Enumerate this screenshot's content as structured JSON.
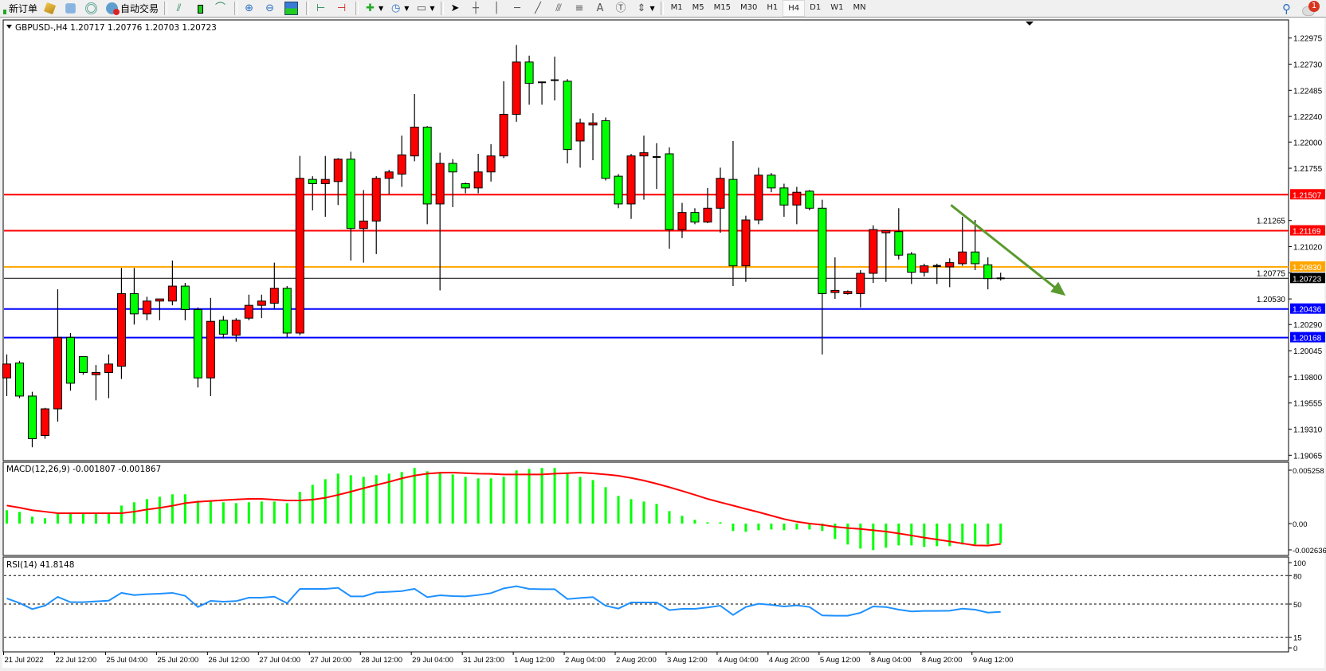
{
  "toolbar": {
    "new_order_label": "新订单",
    "auto_trading_label": "自动交易",
    "icons": [
      "new-order-icon",
      "market-watch-icon",
      "navigator-icon",
      "signals-icon",
      "auto-trading-icon",
      "bar-chart-icon",
      "candlestick-icon",
      "line-chart-icon",
      "zoom-in-icon",
      "zoom-out-icon",
      "tile-windows-icon",
      "chart-shift-icon",
      "autoscroll-icon",
      "indicators-icon",
      "periods-icon",
      "templates-icon",
      "cursor-icon",
      "crosshair-icon",
      "vertical-line-icon",
      "horizontal-line-icon",
      "trendline-icon",
      "equidistant-channel-icon",
      "fibonacci-icon",
      "text-icon",
      "text-label-icon",
      "arrows-icon"
    ],
    "timeframes": [
      "M1",
      "M5",
      "M15",
      "M30",
      "H1",
      "H4",
      "D1",
      "W1",
      "MN"
    ],
    "active_timeframe": "H4",
    "notification_count": "1"
  },
  "colors": {
    "bull": "#ff0000",
    "bear": "#00ff00",
    "macd_hist": "#00ff00",
    "signal": "#ff0000",
    "rsi": "#1e90ff",
    "arrow": "#5b9a2f"
  },
  "chart_data": [
    {
      "type": "candlestick",
      "header": "GBPUSD-,H4  1.20717 1.20776 1.20703 1.20723",
      "ylim": [
        1.19065,
        1.22975
      ],
      "yticks": [
        "1.22975",
        "1.22730",
        "1.22485",
        "1.22240",
        "1.22000",
        "1.21755",
        "1.21265",
        "1.21020",
        "1.20775",
        "1.20530",
        "1.20290",
        "1.20045",
        "1.19800",
        "1.19555",
        "1.19310",
        "1.19065"
      ],
      "time_labels": [
        "21 Jul 2022",
        "22 Jul 12:00",
        "25 Jul 04:00",
        "25 Jul 20:00",
        "26 Jul 12:00",
        "27 Jul 04:00",
        "27 Jul 20:00",
        "28 Jul 12:00",
        "29 Jul 04:00",
        "31 Jul 23:00",
        "1 Aug 12:00",
        "2 Aug 04:00",
        "2 Aug 20:00",
        "3 Aug 12:00",
        "4 Aug 04:00",
        "4 Aug 20:00",
        "5 Aug 12:00",
        "8 Aug 04:00",
        "8 Aug 20:00",
        "9 Aug 12:00"
      ],
      "price_lines": [
        {
          "value": "1.21507",
          "color": "#ff0000"
        },
        {
          "value": "1.21169",
          "color": "#ff0000"
        },
        {
          "value": "1.20830",
          "color": "#ffa500"
        },
        {
          "value": "1.20723",
          "color": "#000000"
        },
        {
          "value": "1.20436",
          "color": "#0000ff"
        },
        {
          "value": "1.20168",
          "color": "#0000ff"
        }
      ],
      "candles_ohlc": [
        [
          1.1979,
          1.2001,
          1.1962,
          1.1992
        ],
        [
          1.1993,
          1.1995,
          1.196,
          1.1962
        ],
        [
          1.1962,
          1.1966,
          1.1914,
          1.1922
        ],
        [
          1.1925,
          1.1951,
          1.1922,
          1.195
        ],
        [
          1.195,
          1.2062,
          1.1938,
          1.2017
        ],
        [
          1.2017,
          1.2021,
          1.1967,
          1.1974
        ],
        [
          1.1999,
          1.1999,
          1.1982,
          1.1984
        ],
        [
          1.1982,
          1.1991,
          1.1958,
          1.1984
        ],
        [
          1.1984,
          1.2001,
          1.196,
          1.1992
        ],
        [
          1.199,
          1.2082,
          1.1978,
          1.2058
        ],
        [
          1.2058,
          1.2082,
          1.2029,
          1.2039
        ],
        [
          1.2039,
          1.2055,
          1.2033,
          1.2051
        ],
        [
          1.2051,
          1.2053,
          1.2033,
          1.2053
        ],
        [
          1.2051,
          1.2089,
          1.2047,
          1.2065
        ],
        [
          1.2065,
          1.2068,
          1.2033,
          1.2043
        ],
        [
          1.2043,
          1.2045,
          1.197,
          1.1979
        ],
        [
          1.1979,
          1.2054,
          1.1962,
          1.2032
        ],
        [
          1.2033,
          1.2037,
          1.2016,
          1.202
        ],
        [
          1.2019,
          1.2035,
          1.2013,
          1.2033
        ],
        [
          1.2035,
          1.2057,
          1.2033,
          1.2047
        ],
        [
          1.2047,
          1.2057,
          1.2035,
          1.2051
        ],
        [
          1.2049,
          1.2087,
          1.2044,
          1.2063
        ],
        [
          1.2063,
          1.2065,
          1.2017,
          1.2021
        ],
        [
          1.2021,
          1.2187,
          1.2019,
          1.2166
        ],
        [
          1.2165,
          1.2168,
          1.2136,
          1.2161
        ],
        [
          1.2161,
          1.2187,
          1.213,
          1.2165
        ],
        [
          1.2163,
          1.2185,
          1.2141,
          1.2184
        ],
        [
          1.2184,
          1.2191,
          1.2089,
          1.2119
        ],
        [
          1.2119,
          1.2155,
          1.2087,
          1.2126
        ],
        [
          1.2126,
          1.2168,
          1.2095,
          1.2166
        ],
        [
          1.2166,
          1.2174,
          1.2151,
          1.2172
        ],
        [
          1.217,
          1.2206,
          1.2158,
          1.2188
        ],
        [
          1.2187,
          1.2245,
          1.2182,
          1.2214
        ],
        [
          1.2214,
          1.2215,
          1.2123,
          1.2142
        ],
        [
          1.2142,
          1.219,
          1.2061,
          1.218
        ],
        [
          1.218,
          1.2184,
          1.2139,
          1.2172
        ],
        [
          1.2161,
          1.2162,
          1.2152,
          1.2157
        ],
        [
          1.2157,
          1.2189,
          1.2152,
          1.2172
        ],
        [
          1.2172,
          1.2198,
          1.2163,
          1.2187
        ],
        [
          1.2187,
          1.2257,
          1.2185,
          1.2226
        ],
        [
          1.2226,
          1.2291,
          1.2219,
          1.2275
        ],
        [
          1.2275,
          1.2281,
          1.2235,
          1.2255
        ],
        [
          1.2256,
          1.2256,
          1.2235,
          1.2256
        ],
        [
          1.2258,
          1.228,
          1.2239,
          1.2258
        ],
        [
          1.2257,
          1.2259,
          1.218,
          1.2193
        ],
        [
          1.2201,
          1.2222,
          1.2176,
          1.2218
        ],
        [
          1.2216,
          1.2227,
          1.2183,
          1.2218
        ],
        [
          1.222,
          1.2223,
          1.2164,
          1.2166
        ],
        [
          1.2168,
          1.217,
          1.2138,
          1.2142
        ],
        [
          1.2142,
          1.2189,
          1.2128,
          1.2187
        ],
        [
          1.2187,
          1.2206,
          1.2146,
          1.219
        ],
        [
          1.2186,
          1.2199,
          1.2156,
          1.2186
        ],
        [
          1.2189,
          1.2195,
          1.21,
          1.2118
        ],
        [
          1.2118,
          1.2143,
          1.211,
          1.2134
        ],
        [
          1.2134,
          1.2138,
          1.2123,
          1.2125
        ],
        [
          1.2125,
          1.2157,
          1.2124,
          1.2138
        ],
        [
          1.2138,
          1.2176,
          1.2115,
          1.2166
        ],
        [
          1.2165,
          1.2201,
          1.2065,
          1.2084
        ],
        [
          1.2084,
          1.2131,
          1.2069,
          1.2127
        ],
        [
          1.2127,
          1.2176,
          1.2123,
          1.2169
        ],
        [
          1.2169,
          1.2171,
          1.2153,
          1.2157
        ],
        [
          1.2157,
          1.2161,
          1.213,
          1.2141
        ],
        [
          1.2141,
          1.2158,
          1.2123,
          1.2153
        ],
        [
          1.2154,
          1.2155,
          1.2136,
          1.2138
        ],
        [
          1.2138,
          1.2146,
          1.2001,
          1.2058
        ],
        [
          1.2059,
          1.2092,
          1.2053,
          1.2061
        ],
        [
          1.2058,
          1.2061,
          1.2057,
          1.206
        ],
        [
          1.2058,
          1.208,
          1.2045,
          1.2077
        ],
        [
          1.2077,
          1.2122,
          1.2068,
          1.2118
        ],
        [
          1.2115,
          1.2117,
          1.2069,
          1.2117
        ],
        [
          1.2116,
          1.2138,
          1.209,
          1.2094
        ],
        [
          1.2095,
          1.2097,
          1.2067,
          1.2078
        ],
        [
          1.2078,
          1.2086,
          1.2074,
          1.2084
        ],
        [
          1.2083,
          1.2086,
          1.2067,
          1.2084
        ],
        [
          1.2083,
          1.2091,
          1.2064,
          1.2087
        ],
        [
          1.2086,
          1.213,
          1.2084,
          1.2097
        ],
        [
          1.2097,
          1.2127,
          1.208,
          1.2086
        ],
        [
          1.2085,
          1.2092,
          1.2062,
          1.2072
        ],
        [
          1.20717,
          1.20776,
          1.20703,
          1.20723
        ]
      ]
    },
    {
      "type": "bar+line",
      "header": "MACD(12,26,9) -0.001807 -0.001867",
      "yticks": [
        "0.005258",
        "0.00",
        "-0.002636"
      ],
      "ylim": [
        -0.002636,
        0.005258
      ],
      "histogram": [
        0.00122,
        0.00107,
        0.00063,
        0.00049,
        0.00092,
        0.00092,
        0.00092,
        0.00092,
        0.00092,
        0.00165,
        0.00195,
        0.00224,
        0.00246,
        0.00268,
        0.00268,
        0.00209,
        0.00202,
        0.00195,
        0.00187,
        0.00195,
        0.00202,
        0.00202,
        0.00187,
        0.0029,
        0.00355,
        0.00406,
        0.00457,
        0.00443,
        0.00428,
        0.00443,
        0.00457,
        0.00472,
        0.00509,
        0.00479,
        0.00472,
        0.0045,
        0.00428,
        0.00414,
        0.00414,
        0.00428,
        0.00487,
        0.00501,
        0.00509,
        0.00509,
        0.00457,
        0.00428,
        0.00399,
        0.00333,
        0.00253,
        0.00224,
        0.00202,
        0.0018,
        0.00114,
        0.00071,
        0.00034,
        0.00012,
        0.00012,
        -0.00068,
        -0.00075,
        -0.00061,
        -0.00054,
        -0.00061,
        -0.00054,
        -0.00054,
        -0.00068,
        -0.00141,
        -0.00192,
        -0.00229,
        -0.00243,
        -0.00221,
        -0.002,
        -0.002,
        -0.00214,
        -0.00207,
        -0.00207,
        -0.00192,
        -0.00192,
        -0.00192,
        -0.001807
      ],
      "signal": [
        0.00165,
        0.00146,
        0.00122,
        0.00109,
        0.00095,
        0.00095,
        0.00095,
        0.00095,
        0.00095,
        0.00095,
        0.00109,
        0.00129,
        0.00144,
        0.00163,
        0.00187,
        0.002,
        0.00207,
        0.00214,
        0.00221,
        0.00226,
        0.00226,
        0.00219,
        0.00212,
        0.00212,
        0.00219,
        0.00236,
        0.00263,
        0.00292,
        0.00324,
        0.00353,
        0.00382,
        0.00414,
        0.0044,
        0.00457,
        0.00465,
        0.00467,
        0.00462,
        0.00457,
        0.00455,
        0.0045,
        0.0045,
        0.0045,
        0.0045,
        0.00457,
        0.00462,
        0.00467,
        0.0046,
        0.0045,
        0.00438,
        0.00418,
        0.00394,
        0.00365,
        0.00333,
        0.00299,
        0.00263,
        0.00226,
        0.00195,
        0.00165,
        0.00134,
        0.00105,
        0.00073,
        0.00041,
        0.00017,
        0,
        -0.00012,
        -0.00029,
        -0.00041,
        -0.00049,
        -0.00061,
        -0.00073,
        -0.0009,
        -0.00109,
        -0.00129,
        -0.00146,
        -0.00163,
        -0.00182,
        -0.002,
        -0.00202,
        -0.001867
      ]
    },
    {
      "type": "line",
      "header": "RSI(14) 41.8148",
      "yticks": [
        "100",
        "80",
        "50",
        "15",
        "0"
      ],
      "levels": [
        80,
        50,
        15
      ],
      "ylim": [
        0,
        100
      ],
      "values": [
        55.9,
        51.1,
        44.7,
        48.3,
        57.6,
        52.0,
        52.0,
        52.8,
        53.6,
        61.8,
        59.5,
        60.4,
        60.9,
        61.8,
        58.7,
        46.9,
        53.4,
        52.5,
        53.1,
        56.7,
        56.7,
        57.8,
        50.8,
        66.0,
        66.0,
        66.0,
        67.1,
        58.1,
        58.1,
        62.3,
        62.9,
        63.7,
        66.0,
        57.3,
        59.2,
        58.4,
        58.1,
        59.5,
        61.5,
        66.5,
        68.8,
        66.0,
        65.7,
        65.7,
        55.3,
        56.4,
        57.3,
        48.3,
        45.2,
        51.7,
        51.7,
        51.7,
        43.6,
        45.0,
        45.0,
        46.4,
        48.3,
        38.5,
        46.9,
        50.3,
        49.2,
        47.5,
        48.6,
        46.9,
        38.0,
        37.7,
        37.7,
        40.8,
        47.5,
        46.9,
        44.1,
        42.2,
        42.7,
        42.7,
        43.0,
        45.2,
        44.1,
        41.0,
        41.8148
      ]
    }
  ]
}
